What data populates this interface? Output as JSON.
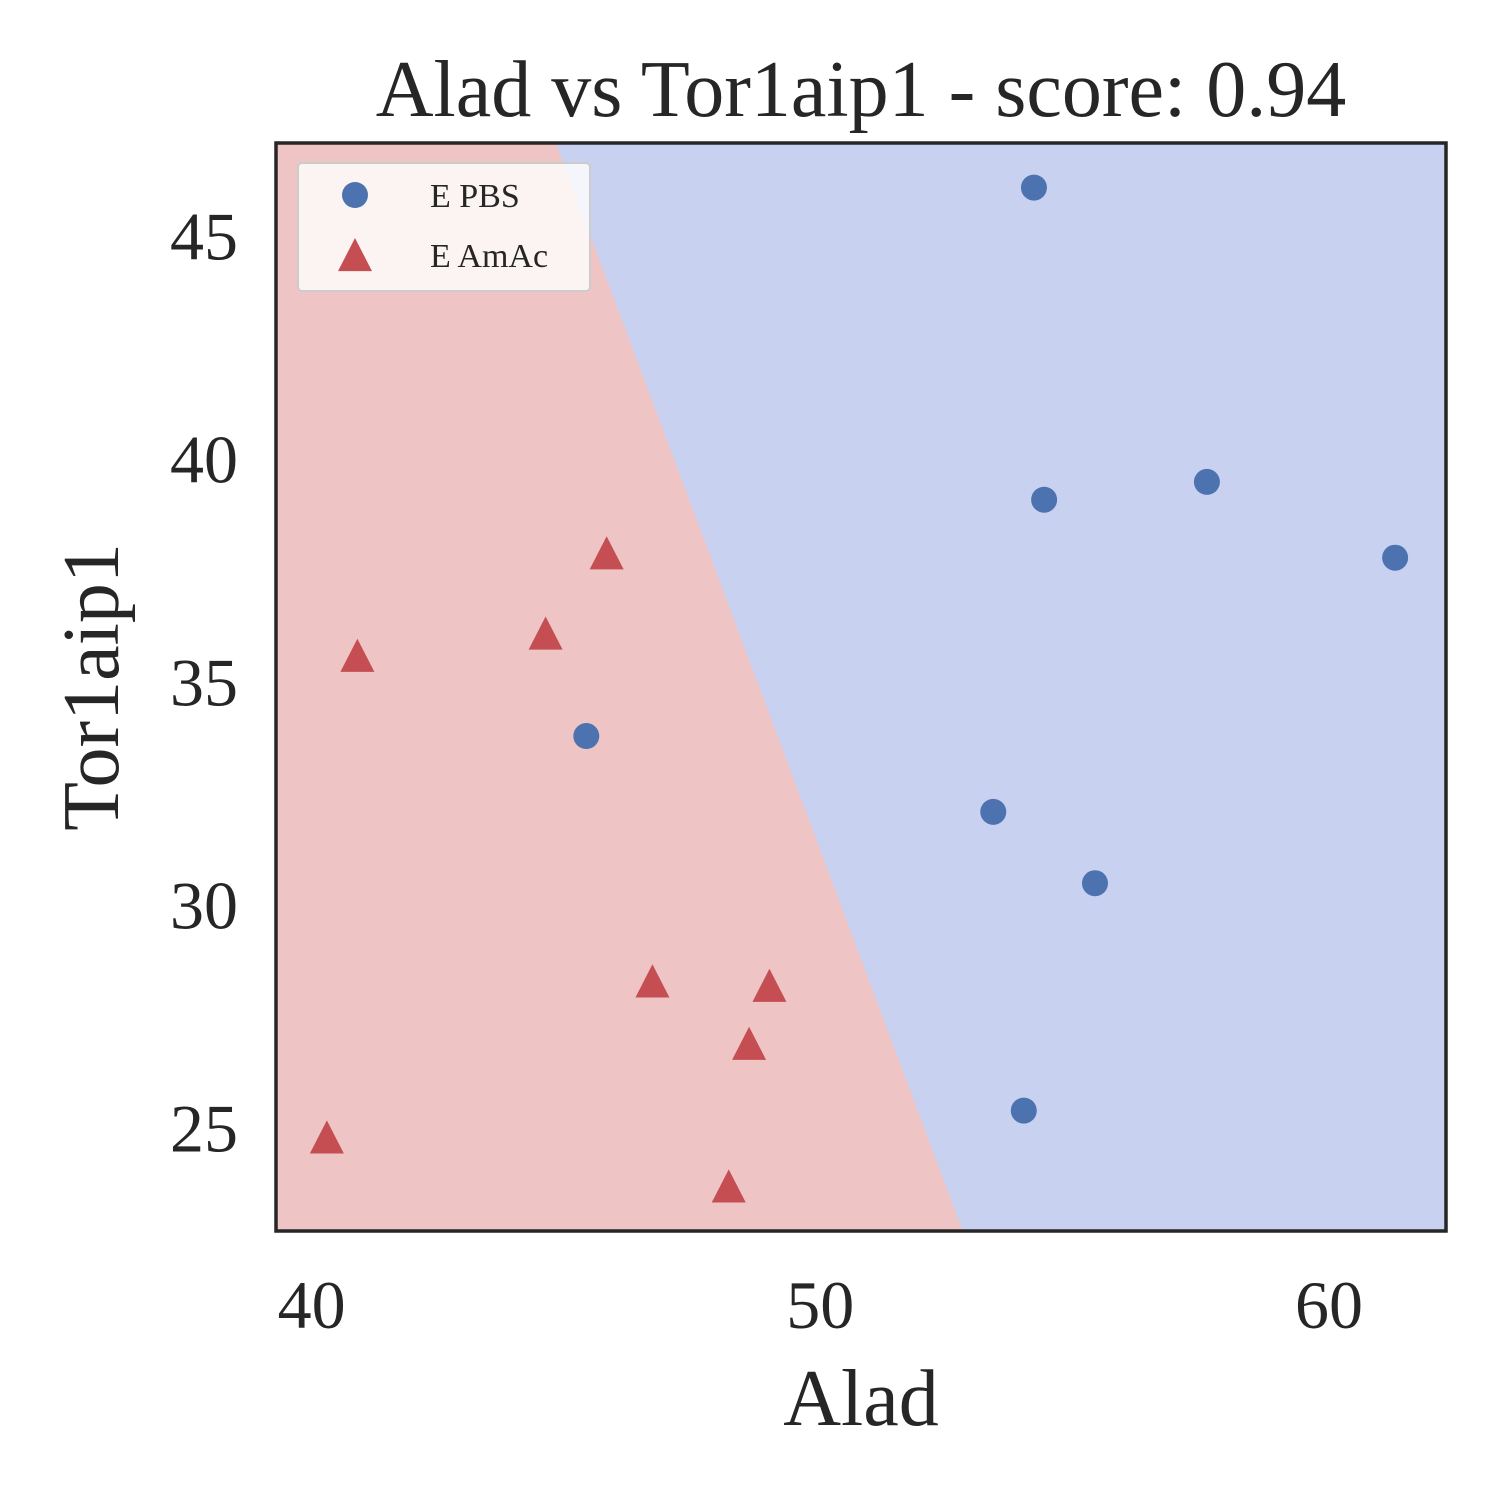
{
  "chart_data": {
    "type": "scatter",
    "title": "Alad vs Tor1aip1 - score: 0.94",
    "xlabel": "Alad",
    "ylabel": "Tor1aip1",
    "xlim": [
      39.3,
      62.3
    ],
    "ylim": [
      22.7,
      47.1
    ],
    "xticks": [
      40,
      50,
      60
    ],
    "yticks": [
      25,
      30,
      35,
      40,
      45
    ],
    "grid": false,
    "legend_position": "top-left",
    "decision_boundary": {
      "line": [
        [
          44.8,
          47.1
        ],
        [
          52.8,
          22.7
        ]
      ],
      "left_class": "E AmAc",
      "right_class": "E PBS",
      "left_color": "#eec5c4",
      "right_color": "#c9d1f1"
    },
    "series": [
      {
        "name": "E PBS",
        "marker": "circle",
        "color": "#4c72b0",
        "points": [
          [
            54.2,
            46.1
          ],
          [
            54.4,
            39.1
          ],
          [
            57.6,
            39.5
          ],
          [
            61.3,
            37.8
          ],
          [
            45.4,
            33.8
          ],
          [
            53.4,
            32.1
          ],
          [
            55.4,
            30.5
          ],
          [
            54.0,
            25.4
          ]
        ]
      },
      {
        "name": "E AmAc",
        "marker": "triangle",
        "color": "#c44e52",
        "points": [
          [
            45.8,
            37.9
          ],
          [
            44.6,
            36.1
          ],
          [
            40.9,
            35.6
          ],
          [
            46.7,
            28.3
          ],
          [
            49.0,
            28.2
          ],
          [
            48.6,
            26.9
          ],
          [
            40.3,
            24.8
          ],
          [
            48.2,
            23.7
          ]
        ]
      }
    ]
  }
}
